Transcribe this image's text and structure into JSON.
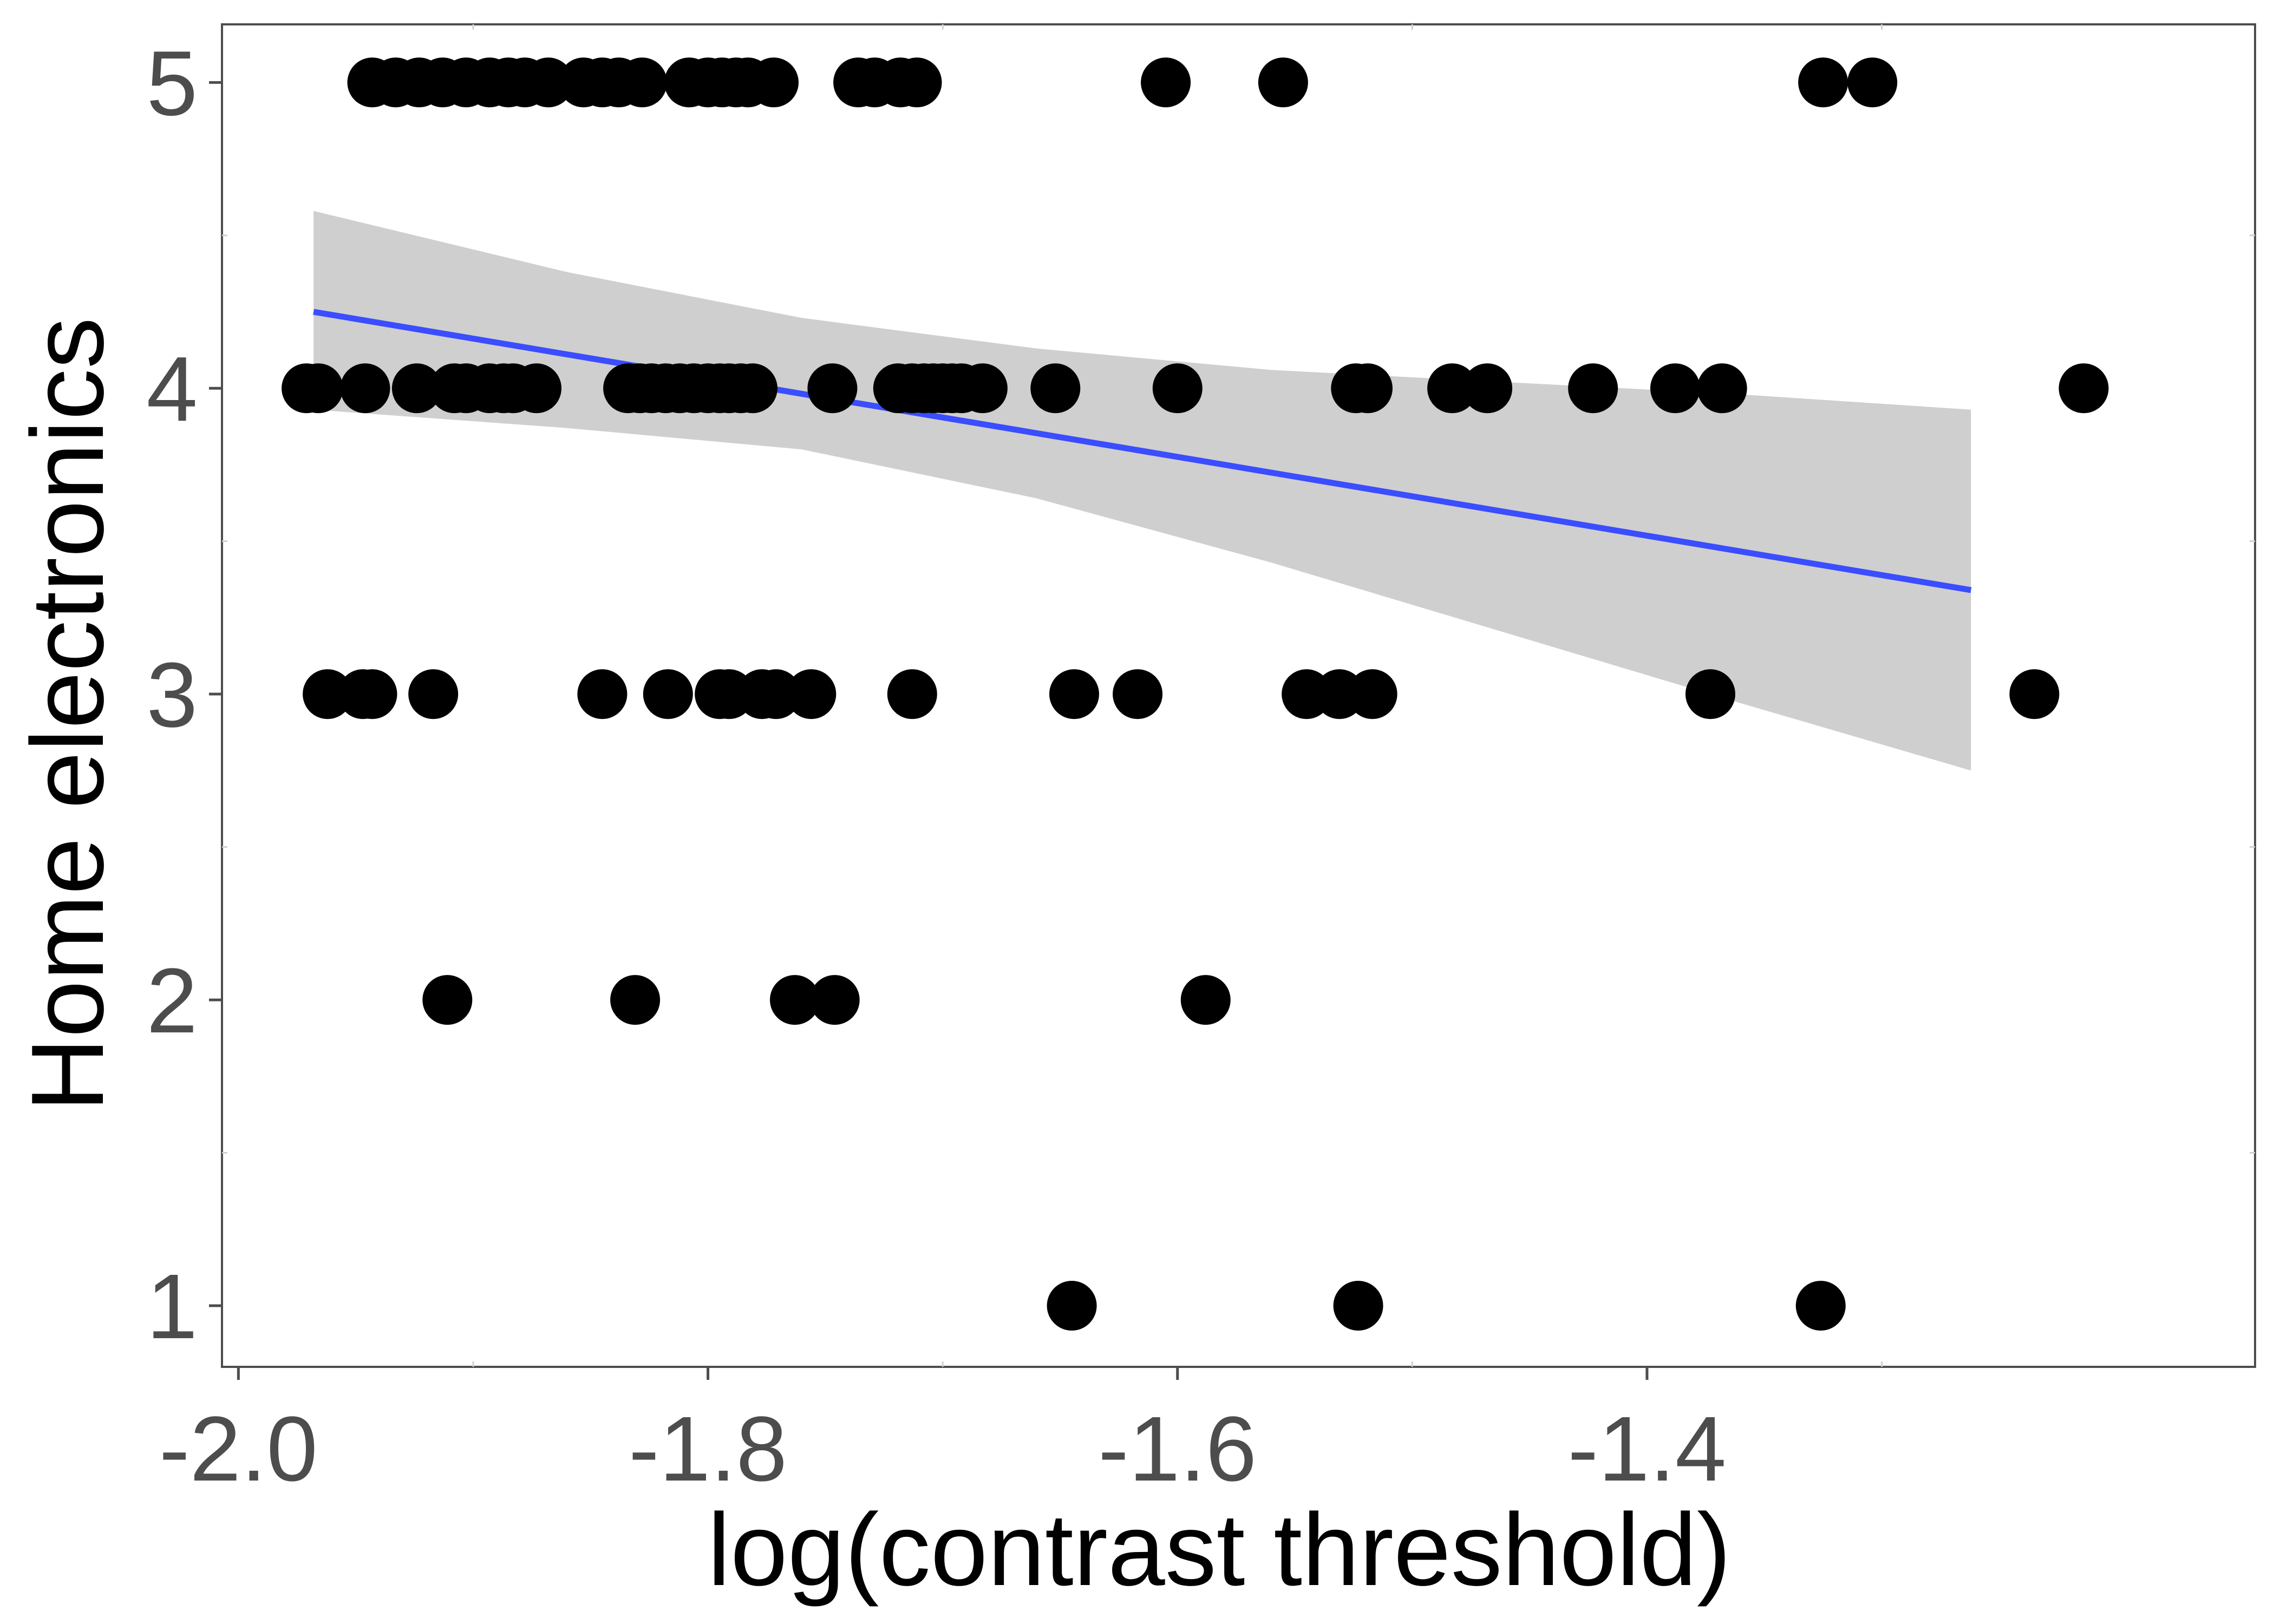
{
  "chart_data": {
    "type": "scatter",
    "title": "",
    "xlabel": "log(contrast threshold)",
    "ylabel": "Home electronics",
    "xlim": [
      -2.007,
      -1.141
    ],
    "ylim": [
      0.8,
      5.19
    ],
    "xticks": [
      -2.0,
      -1.8,
      -1.6,
      -1.4
    ],
    "xtick_labels": [
      "-2.0",
      "-1.8",
      "-1.6",
      "-1.4"
    ],
    "yticks": [
      1,
      2,
      3,
      4,
      5
    ],
    "ytick_labels": [
      "1",
      "2",
      "3",
      "4",
      "5"
    ],
    "grid": false,
    "legend": "none",
    "point_color": "#000000",
    "points": [
      {
        "x": -1.943,
        "y": 5
      },
      {
        "x": -1.933,
        "y": 5
      },
      {
        "x": -1.923,
        "y": 5
      },
      {
        "x": -1.913,
        "y": 5
      },
      {
        "x": -1.903,
        "y": 5
      },
      {
        "x": -1.893,
        "y": 5
      },
      {
        "x": -1.885,
        "y": 5
      },
      {
        "x": -1.878,
        "y": 5
      },
      {
        "x": -1.868,
        "y": 5
      },
      {
        "x": -1.853,
        "y": 5
      },
      {
        "x": -1.845,
        "y": 5
      },
      {
        "x": -1.838,
        "y": 5
      },
      {
        "x": -1.828,
        "y": 5
      },
      {
        "x": -1.808,
        "y": 5
      },
      {
        "x": -1.8,
        "y": 5
      },
      {
        "x": -1.794,
        "y": 5
      },
      {
        "x": -1.788,
        "y": 5
      },
      {
        "x": -1.783,
        "y": 5
      },
      {
        "x": -1.772,
        "y": 5
      },
      {
        "x": -1.736,
        "y": 5
      },
      {
        "x": -1.729,
        "y": 5
      },
      {
        "x": -1.718,
        "y": 5
      },
      {
        "x": -1.711,
        "y": 5
      },
      {
        "x": -1.605,
        "y": 5
      },
      {
        "x": -1.555,
        "y": 5
      },
      {
        "x": -1.325,
        "y": 5
      },
      {
        "x": -1.304,
        "y": 5
      },
      {
        "x": -1.971,
        "y": 4
      },
      {
        "x": -1.966,
        "y": 4
      },
      {
        "x": -1.946,
        "y": 4
      },
      {
        "x": -1.924,
        "y": 4
      },
      {
        "x": -1.908,
        "y": 4
      },
      {
        "x": -1.903,
        "y": 4
      },
      {
        "x": -1.893,
        "y": 4
      },
      {
        "x": -1.887,
        "y": 4
      },
      {
        "x": -1.883,
        "y": 4
      },
      {
        "x": -1.873,
        "y": 4
      },
      {
        "x": -1.834,
        "y": 4
      },
      {
        "x": -1.829,
        "y": 4
      },
      {
        "x": -1.824,
        "y": 4
      },
      {
        "x": -1.818,
        "y": 4
      },
      {
        "x": -1.812,
        "y": 4
      },
      {
        "x": -1.806,
        "y": 4
      },
      {
        "x": -1.8,
        "y": 4
      },
      {
        "x": -1.795,
        "y": 4
      },
      {
        "x": -1.791,
        "y": 4
      },
      {
        "x": -1.786,
        "y": 4
      },
      {
        "x": -1.781,
        "y": 4
      },
      {
        "x": -1.747,
        "y": 4
      },
      {
        "x": -1.719,
        "y": 4
      },
      {
        "x": -1.713,
        "y": 4
      },
      {
        "x": -1.708,
        "y": 4
      },
      {
        "x": -1.704,
        "y": 4
      },
      {
        "x": -1.7,
        "y": 4
      },
      {
        "x": -1.696,
        "y": 4
      },
      {
        "x": -1.692,
        "y": 4
      },
      {
        "x": -1.683,
        "y": 4
      },
      {
        "x": -1.652,
        "y": 4
      },
      {
        "x": -1.6,
        "y": 4
      },
      {
        "x": -1.524,
        "y": 4
      },
      {
        "x": -1.519,
        "y": 4
      },
      {
        "x": -1.483,
        "y": 4
      },
      {
        "x": -1.468,
        "y": 4
      },
      {
        "x": -1.423,
        "y": 4
      },
      {
        "x": -1.388,
        "y": 4
      },
      {
        "x": -1.368,
        "y": 4
      },
      {
        "x": -1.214,
        "y": 4
      },
      {
        "x": -1.962,
        "y": 3
      },
      {
        "x": -1.947,
        "y": 3
      },
      {
        "x": -1.943,
        "y": 3
      },
      {
        "x": -1.917,
        "y": 3
      },
      {
        "x": -1.845,
        "y": 3
      },
      {
        "x": -1.817,
        "y": 3
      },
      {
        "x": -1.795,
        "y": 3
      },
      {
        "x": -1.791,
        "y": 3
      },
      {
        "x": -1.777,
        "y": 3
      },
      {
        "x": -1.771,
        "y": 3
      },
      {
        "x": -1.756,
        "y": 3
      },
      {
        "x": -1.713,
        "y": 3
      },
      {
        "x": -1.644,
        "y": 3
      },
      {
        "x": -1.617,
        "y": 3
      },
      {
        "x": -1.545,
        "y": 3
      },
      {
        "x": -1.531,
        "y": 3
      },
      {
        "x": -1.517,
        "y": 3
      },
      {
        "x": -1.373,
        "y": 3
      },
      {
        "x": -1.235,
        "y": 3
      },
      {
        "x": -1.911,
        "y": 2
      },
      {
        "x": -1.831,
        "y": 2
      },
      {
        "x": -1.763,
        "y": 2
      },
      {
        "x": -1.746,
        "y": 2
      },
      {
        "x": -1.588,
        "y": 2
      },
      {
        "x": -1.645,
        "y": 1
      },
      {
        "x": -1.523,
        "y": 1
      },
      {
        "x": -1.326,
        "y": 1
      }
    ],
    "fit_line": {
      "color": "#3a4dff",
      "x": [
        -1.968,
        -1.262
      ],
      "y": [
        4.25,
        3.34
      ]
    },
    "confidence_band": {
      "color": "#cccccc",
      "x": [
        -1.968,
        -1.86,
        -1.76,
        -1.66,
        -1.56,
        -1.46,
        -1.36,
        -1.262
      ],
      "upper": [
        4.58,
        4.38,
        4.23,
        4.13,
        4.06,
        4.02,
        3.98,
        3.93
      ],
      "lower": [
        3.93,
        3.87,
        3.8,
        3.64,
        3.43,
        3.2,
        2.97,
        2.75
      ]
    }
  }
}
